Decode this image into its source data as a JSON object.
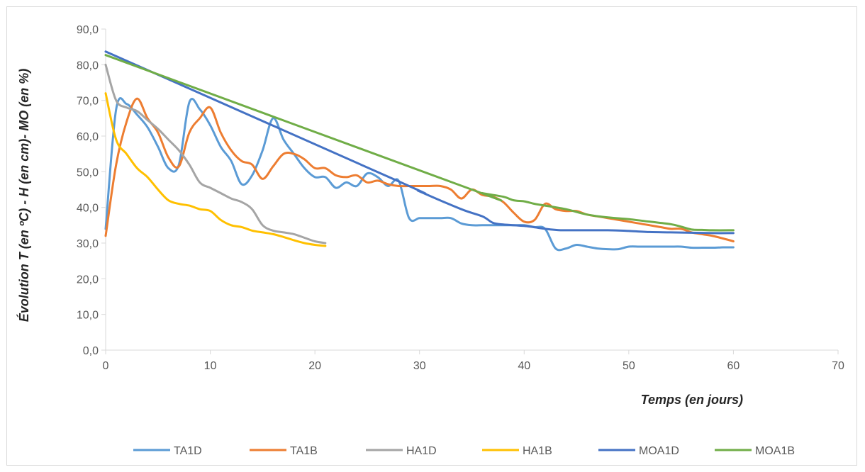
{
  "chart_data": {
    "type": "line",
    "title": "",
    "xlabel": "Temps (en jours)",
    "ylabel": "Évolution T (en ºC) - H (en cm)- MO (en %)",
    "xlim": [
      0,
      70
    ],
    "ylim": [
      0,
      90
    ],
    "xticks": [
      0,
      10,
      20,
      30,
      40,
      50,
      60,
      70
    ],
    "xtick_labels": [
      "0",
      "10",
      "20",
      "30",
      "40",
      "50",
      "60",
      "70"
    ],
    "yticks": [
      0,
      10,
      20,
      30,
      40,
      50,
      60,
      70,
      80,
      90
    ],
    "ytick_labels": [
      "0,0",
      "10,0",
      "20,0",
      "30,0",
      "40,0",
      "50,0",
      "60,0",
      "70,0",
      "80,0",
      "90,0"
    ],
    "grid": false,
    "legend_position": "bottom",
    "series": [
      {
        "name": "TA1D",
        "color": "#5B9BD5",
        "x": [
          0,
          1,
          2,
          3,
          4,
          5,
          6,
          7,
          8,
          9,
          10,
          11,
          12,
          13,
          14,
          15,
          16,
          17,
          18,
          19,
          20,
          21,
          22,
          23,
          24,
          25,
          26,
          27,
          28,
          29,
          30,
          31,
          32,
          33,
          34,
          35,
          36,
          37,
          38,
          39,
          40,
          41,
          42,
          43,
          44,
          45,
          46,
          47,
          48,
          49,
          50,
          51,
          52,
          53,
          54,
          55,
          56,
          57,
          58,
          59,
          60
        ],
        "y": [
          34,
          67.5,
          69,
          66,
          62.5,
          57,
          51,
          52,
          69.5,
          67.5,
          63,
          57,
          53,
          46.5,
          49,
          56,
          65,
          59,
          55,
          51,
          48.5,
          48.5,
          45.5,
          47,
          46,
          49.5,
          48.5,
          46,
          47.5,
          37,
          37,
          37,
          37,
          37,
          35.5,
          35,
          35,
          35,
          35,
          35,
          35,
          34.5,
          34,
          28.5,
          28.5,
          29.5,
          29,
          28.5,
          28.3,
          28.3,
          29,
          29,
          29,
          29,
          29,
          29,
          28.7,
          28.7,
          28.7,
          28.8,
          28.8
        ]
      },
      {
        "name": "TA1B",
        "color": "#ED7D31",
        "x": [
          0,
          1,
          2,
          3,
          4,
          5,
          6,
          7,
          8,
          9,
          10,
          11,
          12,
          13,
          14,
          15,
          16,
          17,
          18,
          19,
          20,
          21,
          22,
          23,
          24,
          25,
          26,
          27,
          28,
          29,
          30,
          31,
          32,
          33,
          34,
          35,
          36,
          37,
          38,
          39,
          40,
          41,
          42,
          43,
          44,
          45,
          46,
          47,
          48,
          49,
          50,
          51,
          52,
          53,
          54,
          55,
          56,
          57,
          58,
          59,
          60
        ],
        "y": [
          32,
          52,
          64,
          70.5,
          65,
          61,
          54,
          51.5,
          61,
          65,
          68,
          61,
          56,
          53,
          52,
          48,
          51.5,
          55,
          55,
          53.5,
          51,
          51,
          49,
          48.5,
          49,
          47,
          47.5,
          46.5,
          46,
          46,
          46,
          46,
          46,
          45,
          42.5,
          45,
          43.5,
          43,
          41.5,
          38.5,
          36,
          36.5,
          41,
          39.5,
          39,
          39,
          38,
          37.5,
          37,
          36.5,
          36,
          35.5,
          35,
          34.5,
          34,
          34,
          33,
          32.5,
          32,
          31.3,
          30.5
        ]
      },
      {
        "name": "HA1D",
        "color": "#A5A5A5",
        "x": [
          0,
          1,
          2,
          3,
          4,
          5,
          6,
          7,
          8,
          9,
          10,
          11,
          12,
          13,
          14,
          15,
          16,
          17,
          18,
          19,
          20,
          21
        ],
        "y": [
          80,
          70,
          68,
          67,
          64.5,
          62,
          59,
          56,
          52,
          47,
          45.5,
          44,
          42.5,
          41.5,
          39.5,
          35,
          33.5,
          33,
          32.5,
          31.5,
          30.5,
          30
        ]
      },
      {
        "name": "HA1B",
        "color": "#FFC000",
        "x": [
          0,
          1,
          2,
          3,
          4,
          5,
          6,
          7,
          8,
          9,
          10,
          11,
          12,
          13,
          14,
          15,
          16,
          17,
          18,
          19,
          20,
          21
        ],
        "y": [
          72,
          59,
          55,
          51,
          48.5,
          45,
          42,
          41,
          40.5,
          39.5,
          39,
          36.5,
          35,
          34.5,
          33.5,
          33,
          32.5,
          31.7,
          30.8,
          30,
          29.5,
          29.2
        ]
      },
      {
        "name": "MOA1D",
        "color": "#4472C4",
        "x": [
          0,
          28,
          30,
          34,
          36,
          37,
          38,
          40,
          42,
          43,
          44,
          48,
          50,
          52,
          54,
          56,
          58,
          60
        ],
        "y": [
          83.7,
          47.3,
          44.5,
          39.5,
          37.5,
          35.7,
          35.2,
          34.8,
          34,
          33.7,
          33.6,
          33.6,
          33.4,
          33.1,
          33,
          32.9,
          32.8,
          32.8
        ]
      },
      {
        "name": "MOA1B",
        "color": "#70AD47",
        "x": [
          0,
          35,
          36,
          38,
          39,
          40,
          41,
          42,
          44,
          46,
          48,
          50,
          52,
          54,
          55,
          56,
          57,
          58,
          60
        ],
        "y": [
          82.7,
          45,
          44,
          43,
          42,
          41.7,
          41,
          40.5,
          39.5,
          38,
          37.2,
          36.7,
          36,
          35.3,
          34.6,
          33.8,
          33.7,
          33.6,
          33.6
        ]
      }
    ]
  }
}
